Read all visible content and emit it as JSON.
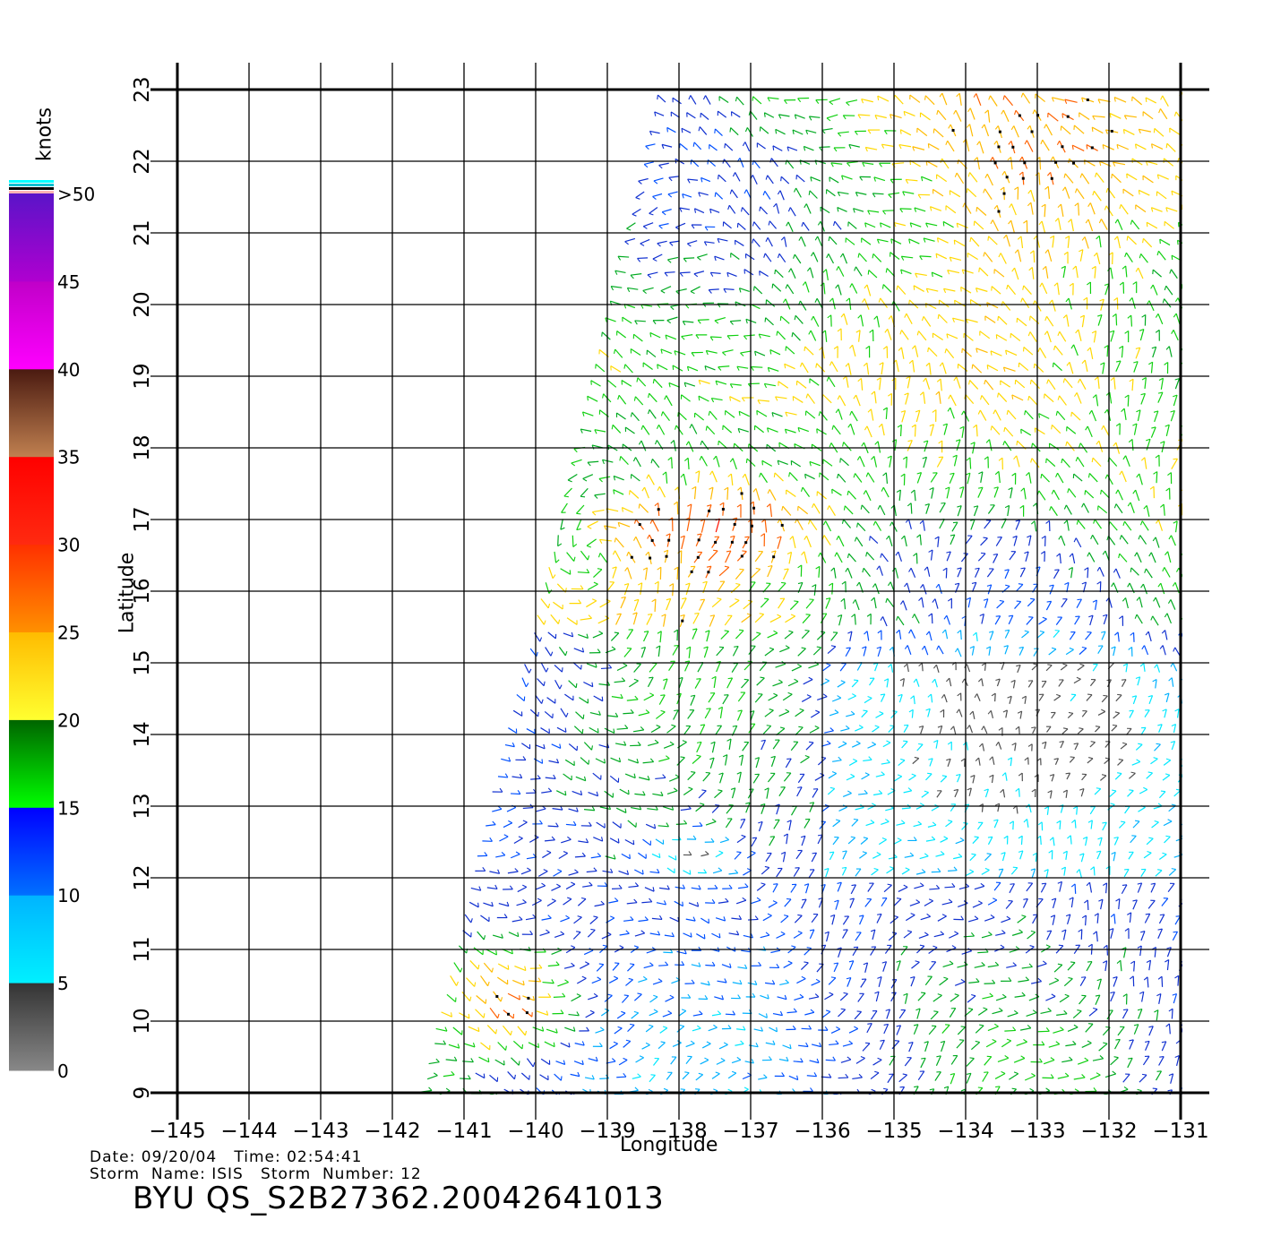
{
  "map": {
    "lon_min": -145,
    "lon_max": -131,
    "lat_min": 9,
    "lat_max": 23,
    "lon_ticks": [
      -145,
      -144,
      -143,
      -142,
      -141,
      -140,
      -139,
      -138,
      -137,
      -136,
      -135,
      -134,
      -133,
      -132,
      -131
    ],
    "lat_ticks": [
      9,
      10,
      11,
      12,
      13,
      14,
      15,
      16,
      17,
      18,
      19,
      20,
      21,
      22,
      23
    ],
    "xlabel": "Longitude",
    "ylabel": "Latitude",
    "swath_description": "QuikSCAT wind vectors, swath from about 141.5W/9N to 138.2W/23N eastward",
    "grid": true
  },
  "colorbar": {
    "units": "knots",
    "labels": [
      ">50",
      "45",
      "40",
      "35",
      "30",
      "25",
      "20",
      "15",
      "10",
      "5",
      "0"
    ],
    "bands": [
      {
        "from": 0,
        "to": 5,
        "top": "#333333",
        "bottom": "#888888"
      },
      {
        "from": 5,
        "to": 10,
        "top": "#00b4ff",
        "bottom": "#00f0ff"
      },
      {
        "from": 10,
        "to": 15,
        "top": "#0000ff",
        "bottom": "#0070ff"
      },
      {
        "from": 15,
        "to": 20,
        "top": "#006400",
        "bottom": "#00ff00"
      },
      {
        "from": 20,
        "to": 25,
        "top": "#ffbb00",
        "bottom": "#ffff30"
      },
      {
        "from": 25,
        "to": 30,
        "top": "#ff3000",
        "bottom": "#ff9000"
      },
      {
        "from": 30,
        "to": 35,
        "top": "#ff0000",
        "bottom": "#ff2a10"
      },
      {
        "from": 35,
        "to": 40,
        "top": "#4a1a10",
        "bottom": "#c08050"
      },
      {
        "from": 40,
        "to": 45,
        "top": "#c000c8",
        "bottom": "#ff00ff"
      },
      {
        "from": 45,
        "to": 50,
        "top": "#5a14c8",
        "bottom": "#b000d0"
      }
    ],
    "overflow_colors": [
      "#ffb4b4",
      "#000000",
      "#00c0d0",
      "#00ffff"
    ]
  },
  "footer": {
    "date_label": "Date:",
    "date": "09/20/04",
    "time_label": "Time:",
    "time": "02:54:41",
    "storm_name_label": "Storm  Name:",
    "storm_name": "ISIS",
    "storm_number_label": "Storm  Number:",
    "storm_number": "12",
    "file_id": "BYU  QS_S2B27362.20042641013"
  }
}
